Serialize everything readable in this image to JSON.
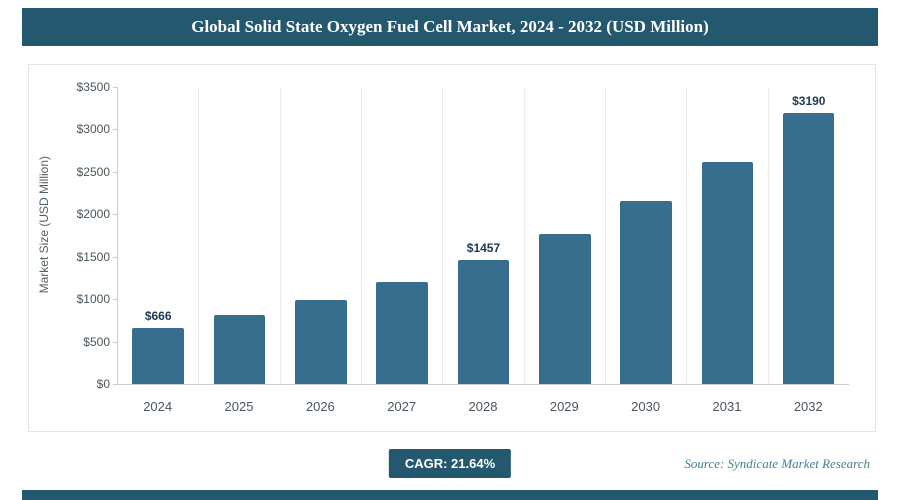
{
  "header": {
    "title": "Global Solid State Oxygen Fuel Cell Market, 2024 - 2032 (USD Million)"
  },
  "chart_data": {
    "type": "bar",
    "title": "Global Solid State Oxygen Fuel Cell Market, 2024 - 2032 (USD Million)",
    "categories": [
      "2024",
      "2025",
      "2026",
      "2027",
      "2028",
      "2029",
      "2030",
      "2031",
      "2032"
    ],
    "values": [
      666,
      810,
      985,
      1198,
      1457,
      1772,
      2156,
      2622,
      3190
    ],
    "bar_labels": [
      "$666",
      "",
      "",
      "",
      "$1457",
      "",
      "",
      "",
      "$3190"
    ],
    "xlabel": "",
    "ylabel": "Market Size (USD Million)",
    "ylim": [
      0,
      3500
    ],
    "yticks": [
      "$0",
      "$500",
      "$1000",
      "$1500",
      "$2000",
      "$2500",
      "$3000",
      "$3500"
    ],
    "grid": "vertical category separators",
    "legend": "none",
    "bar_color": "#376e8e"
  },
  "footer": {
    "cagr_label": "CAGR: 21.64%",
    "source": "Source: Syndicate Market Research"
  },
  "colors": {
    "accent": "#24586f",
    "bar": "#376e8e"
  }
}
